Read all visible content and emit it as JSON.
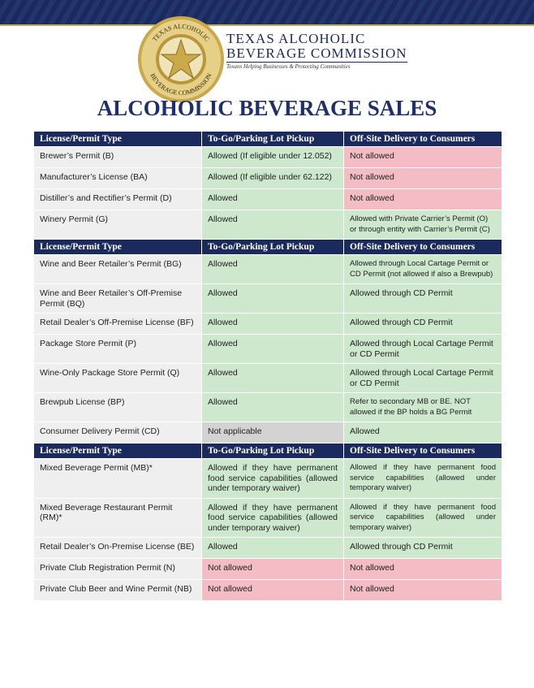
{
  "header": {
    "seal_top": "TEXAS ALCOHOLIC",
    "seal_bottom": "BEVERAGE COMMISSION",
    "org_line1": "TEXAS ALCOHOLIC",
    "org_line2": "BEVERAGE COMMISSION",
    "tagline": "Texans Helping Businesses & Protecting Communities"
  },
  "title": "ALCOHOLIC BEVERAGE SALES",
  "table": {
    "sections": [
      {
        "columns": [
          "License/Permit Type",
          "To-Go/Parking Lot Pickup",
          "Off-Site Delivery to Consumers"
        ],
        "rows": [
          {
            "cells": [
              {
                "text": "Brewer’s Permit (B)",
                "color": "#efefef"
              },
              {
                "text": "Allowed (If eligible under 12.052)",
                "color": "#cde8cd"
              },
              {
                "text": "Not allowed",
                "color": "#f4bcc4"
              }
            ]
          },
          {
            "cells": [
              {
                "text": "Manufacturer’s License (BA)",
                "color": "#efefef"
              },
              {
                "text": "Allowed (If eligible under 62.122)",
                "color": "#cde8cd"
              },
              {
                "text": "Not allowed",
                "color": "#f4bcc4"
              }
            ]
          },
          {
            "cells": [
              {
                "text": "Distiller’s and Rectifier’s Permit (D)",
                "color": "#efefef"
              },
              {
                "text": "Allowed",
                "color": "#cde8cd"
              },
              {
                "text": "Not allowed",
                "color": "#f4bcc4"
              }
            ]
          },
          {
            "cells": [
              {
                "text": "Winery Permit (G)",
                "color": "#efefef"
              },
              {
                "text": "Allowed",
                "color": "#cde8cd"
              },
              {
                "text": "Allowed with Private Carrier’s Permit (O) or through entity with Carrier’s Permit (C)",
                "color": "#cde8cd"
              }
            ]
          }
        ]
      },
      {
        "columns": [
          "License/Permit Type",
          "To-Go/Parking Lot Pickup",
          "Off-Site Delivery to Consumers"
        ],
        "rows": [
          {
            "cells": [
              {
                "text": "Wine and Beer Retailer’s Permit (BG)",
                "color": "#efefef"
              },
              {
                "text": "Allowed",
                "color": "#cde8cd"
              },
              {
                "text": "Allowed through Local Cartage Permit or CD Permit (not allowed if also a Brewpub)",
                "color": "#cde8cd"
              }
            ]
          },
          {
            "cells": [
              {
                "text": "Wine and Beer Retailer’s Off-Premise Permit (BQ)",
                "color": "#efefef"
              },
              {
                "text": "Allowed",
                "color": "#cde8cd"
              },
              {
                "text": "Allowed through CD Permit",
                "color": "#cde8cd"
              }
            ]
          },
          {
            "cells": [
              {
                "text": "Retail Dealer’s Off-Premise License (BF)",
                "color": "#efefef"
              },
              {
                "text": "Allowed",
                "color": "#cde8cd"
              },
              {
                "text": "Allowed through CD Permit",
                "color": "#cde8cd"
              }
            ]
          },
          {
            "cells": [
              {
                "text": "Package Store Permit (P)",
                "color": "#efefef"
              },
              {
                "text": "Allowed",
                "color": "#cde8cd"
              },
              {
                "text": "Allowed through Local Cartage Permit or CD Permit",
                "color": "#cde8cd"
              }
            ]
          },
          {
            "cells": [
              {
                "text": "Wine-Only Package Store Permit (Q)",
                "color": "#efefef"
              },
              {
                "text": "Allowed",
                "color": "#cde8cd"
              },
              {
                "text": "Allowed through Local Cartage Permit or CD Permit",
                "color": "#cde8cd"
              }
            ]
          },
          {
            "cells": [
              {
                "text": "Brewpub License (BP)",
                "color": "#efefef"
              },
              {
                "text": "Allowed",
                "color": "#cde8cd"
              },
              {
                "text": "Refer to secondary MB or BE. NOT allowed if the BP holds a BG Permit",
                "color": "#cde8cd"
              }
            ]
          },
          {
            "cells": [
              {
                "text": "Consumer Delivery Permit (CD)",
                "color": "#efefef"
              },
              {
                "text": "Not applicable",
                "color": "#d3d3d3"
              },
              {
                "text": "Allowed",
                "color": "#cde8cd"
              }
            ]
          }
        ]
      },
      {
        "columns": [
          "License/Permit Type",
          "To-Go/Parking Lot Pickup",
          "Off-Site Delivery to Consumers"
        ],
        "rows": [
          {
            "cells": [
              {
                "text": "Mixed Beverage Permit (MB)*",
                "color": "#efefef"
              },
              {
                "text": "Allowed if they have permanent food service capabilities (allowed under temporary waiver)",
                "color": "#cde8cd"
              },
              {
                "text": "Allowed if they have permanent food service capabilities (allowed under temporary waiver)",
                "color": "#cde8cd"
              }
            ]
          },
          {
            "cells": [
              {
                "text": "Mixed Beverage Restaurant Permit (RM)*",
                "color": "#efefef"
              },
              {
                "text": "Allowed if they have permanent food service capabilities (allowed under temporary waiver)",
                "color": "#cde8cd"
              },
              {
                "text": "Allowed if they have permanent food service capabilities (allowed under temporary waiver)",
                "color": "#cde8cd"
              }
            ]
          },
          {
            "cells": [
              {
                "text": "Retail Dealer’s On-Premise License (BE)",
                "color": "#efefef"
              },
              {
                "text": "Allowed",
                "color": "#cde8cd"
              },
              {
                "text": "Allowed through CD Permit",
                "color": "#cde8cd"
              }
            ]
          },
          {
            "cells": [
              {
                "text": "Private Club Registration Permit (N)",
                "color": "#efefef"
              },
              {
                "text": "Not allowed",
                "color": "#f4bcc4"
              },
              {
                "text": "Not allowed",
                "color": "#f4bcc4"
              }
            ]
          },
          {
            "cells": [
              {
                "text": "Private Club Beer and Wine Permit (NB)",
                "color": "#efefef"
              },
              {
                "text": "Not allowed",
                "color": "#f4bcc4"
              },
              {
                "text": "Not allowed",
                "color": "#f4bcc4"
              }
            ]
          }
        ]
      }
    ]
  }
}
